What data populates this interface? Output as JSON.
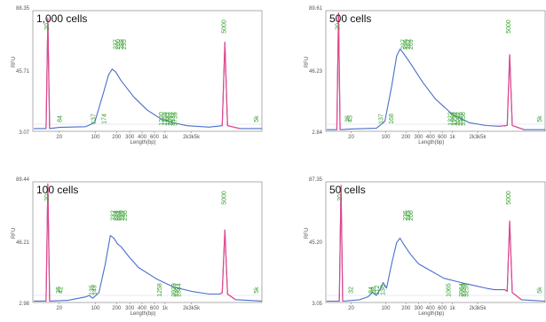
{
  "chart_data": [
    {
      "type": "line",
      "title": "1,000 cells",
      "ylabel": "RFU",
      "xlabel": "Length(bp)",
      "ytick_labels": [
        "88.35",
        "45.71",
        "3.07"
      ],
      "xtick_labels": [
        "20",
        "100",
        "200",
        "300",
        "400",
        "600",
        "1k",
        "2k3k5k"
      ],
      "ylim": [
        3.07,
        88.35
      ],
      "marker_low": "20",
      "marker_high": "5000",
      "peak_labels": [
        "84",
        "137",
        "174",
        "237",
        "260",
        "288",
        "295",
        "1230",
        "1558",
        "1882",
        "2092",
        "3132",
        "3739",
        "5k"
      ],
      "series": [
        {
          "values": [
            [
              1,
              5
            ],
            [
              15,
              5
            ],
            [
              17,
              83
            ],
            [
              19,
              5
            ],
            [
              30,
              5.8
            ],
            [
              60,
              6.3
            ],
            [
              70,
              9
            ],
            [
              80,
              30
            ],
            [
              86,
              43
            ],
            [
              90,
              47
            ],
            [
              94,
              45
            ],
            [
              100,
              39
            ],
            [
              115,
              27
            ],
            [
              130,
              18
            ],
            [
              145,
              12
            ],
            [
              160,
              9
            ],
            [
              175,
              7
            ],
            [
              200,
              6
            ],
            [
              215,
              7
            ],
            [
              218,
              66
            ],
            [
              221,
              7
            ],
            [
              235,
              5
            ],
            [
              260,
              5
            ]
          ]
        }
      ]
    },
    {
      "type": "line",
      "title": "500 cells",
      "ylabel": "RFU",
      "xlabel": "Length(bp)",
      "ytick_labels": [
        "89.61",
        "46.23",
        "2.84"
      ],
      "xtick_labels": [
        "20",
        "100",
        "200",
        "300",
        "400",
        "600",
        "1k",
        "2k3k5k"
      ],
      "ylim": [
        2.84,
        89.61
      ],
      "marker_low": "20",
      "marker_high": "5000",
      "peak_labels": [
        "36",
        "45",
        "137",
        "168",
        "237",
        "256",
        "262",
        "269",
        "1322",
        "1569",
        "1732",
        "2002",
        "2526",
        "3156",
        "5k"
      ],
      "series": [
        {
          "values": [
            [
              1,
              4
            ],
            [
              13,
              4
            ],
            [
              15,
              88
            ],
            [
              17,
              4
            ],
            [
              30,
              4.5
            ],
            [
              60,
              5
            ],
            [
              70,
              10
            ],
            [
              78,
              35
            ],
            [
              84,
              57
            ],
            [
              88,
              62
            ],
            [
              92,
              59
            ],
            [
              100,
              52
            ],
            [
              115,
              38
            ],
            [
              130,
              26
            ],
            [
              150,
              15
            ],
            [
              170,
              9
            ],
            [
              190,
              7
            ],
            [
              205,
              6.5
            ],
            [
              215,
              7
            ],
            [
              218,
              58
            ],
            [
              221,
              7
            ],
            [
              235,
              4
            ],
            [
              260,
              4
            ]
          ]
        }
      ]
    },
    {
      "type": "line",
      "title": "100 cells",
      "ylabel": "RFU",
      "xlabel": "Length(bp)",
      "ytick_labels": [
        "89.44",
        "46.21",
        "2.98"
      ],
      "xtick_labels": [
        "20",
        "100",
        "200",
        "300",
        "400",
        "600",
        "1k",
        "2k3k5k"
      ],
      "ylim": [
        2.98,
        89.44
      ],
      "marker_low": "20",
      "marker_high": "5000",
      "peak_labels": [
        "36",
        "42",
        "135",
        "149",
        "232",
        "254",
        "261",
        "266",
        "289",
        "296",
        "1258",
        "2023",
        "2367",
        "2844",
        "5k"
      ],
      "series": [
        {
          "values": [
            [
              1,
              4
            ],
            [
              15,
              4
            ],
            [
              17,
              88
            ],
            [
              19,
              4
            ],
            [
              40,
              4.5
            ],
            [
              60,
              7
            ],
            [
              64,
              8
            ],
            [
              68,
              6
            ],
            [
              75,
              10
            ],
            [
              82,
              30
            ],
            [
              88,
              51
            ],
            [
              92,
              49
            ],
            [
              96,
              45
            ],
            [
              100,
              43
            ],
            [
              110,
              35
            ],
            [
              120,
              28
            ],
            [
              140,
              20
            ],
            [
              160,
              14
            ],
            [
              180,
              11
            ],
            [
              200,
              9
            ],
            [
              212,
              9
            ],
            [
              215,
              10
            ],
            [
              218,
              55
            ],
            [
              221,
              9
            ],
            [
              230,
              5
            ],
            [
              260,
              4
            ]
          ]
        }
      ]
    },
    {
      "type": "line",
      "title": "50 cells",
      "ylabel": "RFU",
      "xlabel": "Length(bp)",
      "ytick_labels": [
        "87.35",
        "45.20",
        "3.05"
      ],
      "xtick_labels": [
        "20",
        "100",
        "200",
        "300",
        "400",
        "600",
        "1k",
        "2k3k5k"
      ],
      "ylim": [
        3.05,
        87.35
      ],
      "marker_low": "20",
      "marker_high": "5000",
      "peak_labels": [
        "32",
        "84",
        "98",
        "112",
        "136",
        "236",
        "245",
        "266",
        "1065",
        "2064",
        "2259",
        "3259",
        "5k"
      ],
      "series": [
        {
          "values": [
            [
              1,
              4
            ],
            [
              16,
              4
            ],
            [
              18,
              85
            ],
            [
              20,
              4
            ],
            [
              40,
              5
            ],
            [
              50,
              7
            ],
            [
              55,
              10
            ],
            [
              60,
              8
            ],
            [
              64,
              12
            ],
            [
              68,
              17
            ],
            [
              72,
              13
            ],
            [
              78,
              30
            ],
            [
              84,
              45
            ],
            [
              88,
              48
            ],
            [
              92,
              44
            ],
            [
              100,
              37
            ],
            [
              110,
              30
            ],
            [
              125,
              25
            ],
            [
              140,
              20
            ],
            [
              160,
              17
            ],
            [
              175,
              15
            ],
            [
              190,
              13
            ],
            [
              200,
              12
            ],
            [
              212,
              12
            ],
            [
              215,
              11
            ],
            [
              218,
              60
            ],
            [
              221,
              10
            ],
            [
              232,
              5
            ],
            [
              260,
              4
            ]
          ]
        }
      ]
    }
  ]
}
